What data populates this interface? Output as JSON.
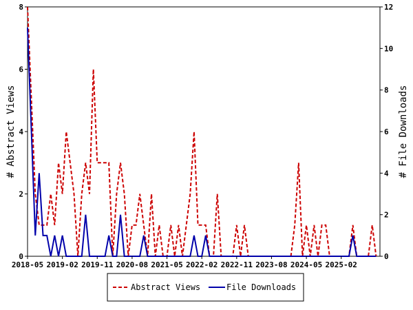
{
  "chart_data": {
    "type": "line",
    "title": "",
    "ylabel_left": "# Abstract Views",
    "ylabel_right": "# File Downloads",
    "ylim_left": [
      0,
      8
    ],
    "ylim_right": [
      0,
      12
    ],
    "yticks_left": [
      "0",
      "2",
      "4",
      "6",
      "8"
    ],
    "yticks_right": [
      "0",
      "2",
      "4",
      "6",
      "8",
      "10",
      "12"
    ],
    "xlim": [
      "2018-05",
      "2025-12"
    ],
    "xticks": [
      "2018-05",
      "2019-02",
      "2019-11",
      "2020-08",
      "2021-05",
      "2022-02",
      "2022-11",
      "2023-08",
      "2024-05",
      "2025-02"
    ],
    "grid": false,
    "legend_position": "bottom",
    "series": [
      {
        "name": "Abstract Views",
        "axis": "left",
        "color": "#cc0000",
        "style": "dashed",
        "points": [
          [
            "2018-05",
            8
          ],
          [
            "2018-06",
            5
          ],
          [
            "2018-07",
            2
          ],
          [
            "2018-08",
            1
          ],
          [
            "2018-09",
            1
          ],
          [
            "2018-10",
            1
          ],
          [
            "2018-11",
            2
          ],
          [
            "2018-12",
            1
          ],
          [
            "2019-01",
            3
          ],
          [
            "2019-02",
            2
          ],
          [
            "2019-03",
            4
          ],
          [
            "2019-04",
            3
          ],
          [
            "2019-05",
            2
          ],
          [
            "2019-06",
            0
          ],
          [
            "2019-07",
            2
          ],
          [
            "2019-08",
            3
          ],
          [
            "2019-09",
            2
          ],
          [
            "2019-10",
            6
          ],
          [
            "2019-11",
            3
          ],
          [
            "2019-12",
            3
          ],
          [
            "2020-01",
            3
          ],
          [
            "2020-02",
            3
          ],
          [
            "2020-03",
            0
          ],
          [
            "2020-04",
            2
          ],
          [
            "2020-05",
            3
          ],
          [
            "2020-06",
            2
          ],
          [
            "2020-07",
            0
          ],
          [
            "2020-08",
            1
          ],
          [
            "2020-09",
            1
          ],
          [
            "2020-10",
            2
          ],
          [
            "2020-11",
            1
          ],
          [
            "2020-12",
            0
          ],
          [
            "2021-01",
            2
          ],
          [
            "2021-02",
            0
          ],
          [
            "2021-03",
            1
          ],
          [
            "2021-04",
            0
          ],
          [
            "2021-05",
            0
          ],
          [
            "2021-06",
            1
          ],
          [
            "2021-07",
            0
          ],
          [
            "2021-08",
            1
          ],
          [
            "2021-09",
            0
          ],
          [
            "2021-10",
            1
          ],
          [
            "2021-11",
            2
          ],
          [
            "2021-12",
            4
          ],
          [
            "2022-01",
            1
          ],
          [
            "2022-02",
            1
          ],
          [
            "2022-03",
            1
          ],
          [
            "2022-04",
            0
          ],
          [
            "2022-05",
            0
          ],
          [
            "2022-06",
            2
          ],
          [
            "2022-07",
            0
          ],
          [
            "2022-08",
            0
          ],
          [
            "2022-09",
            0
          ],
          [
            "2022-10",
            0
          ],
          [
            "2022-11",
            1
          ],
          [
            "2022-12",
            0
          ],
          [
            "2023-01",
            1
          ],
          [
            "2023-02",
            0
          ],
          [
            "2023-03",
            0
          ],
          [
            "2023-04",
            0
          ],
          [
            "2023-05",
            0
          ],
          [
            "2023-06",
            0
          ],
          [
            "2023-07",
            0
          ],
          [
            "2023-08",
            0
          ],
          [
            "2023-09",
            0
          ],
          [
            "2023-10",
            0
          ],
          [
            "2023-11",
            0
          ],
          [
            "2023-12",
            0
          ],
          [
            "2024-01",
            0
          ],
          [
            "2024-02",
            1
          ],
          [
            "2024-03",
            3
          ],
          [
            "2024-04",
            0
          ],
          [
            "2024-05",
            1
          ],
          [
            "2024-06",
            0
          ],
          [
            "2024-07",
            1
          ],
          [
            "2024-08",
            0
          ],
          [
            "2024-09",
            1
          ],
          [
            "2024-10",
            1
          ],
          [
            "2024-11",
            0
          ],
          [
            "2024-12",
            0
          ],
          [
            "2025-01",
            0
          ],
          [
            "2025-02",
            0
          ],
          [
            "2025-03",
            0
          ],
          [
            "2025-04",
            0
          ],
          [
            "2025-05",
            1
          ],
          [
            "2025-06",
            0
          ],
          [
            "2025-07",
            0
          ],
          [
            "2025-08",
            0
          ],
          [
            "2025-09",
            0
          ],
          [
            "2025-10",
            1
          ],
          [
            "2025-11",
            0
          ]
        ]
      },
      {
        "name": "File Downloads",
        "axis": "right",
        "color": "#0000aa",
        "style": "solid",
        "points": [
          [
            "2018-05",
            11
          ],
          [
            "2018-06",
            6
          ],
          [
            "2018-07",
            1
          ],
          [
            "2018-08",
            4
          ],
          [
            "2018-09",
            1
          ],
          [
            "2018-10",
            1
          ],
          [
            "2018-11",
            0
          ],
          [
            "2018-12",
            1
          ],
          [
            "2019-01",
            0
          ],
          [
            "2019-02",
            1
          ],
          [
            "2019-03",
            0
          ],
          [
            "2019-04",
            0
          ],
          [
            "2019-05",
            0
          ],
          [
            "2019-06",
            0
          ],
          [
            "2019-07",
            0
          ],
          [
            "2019-08",
            2
          ],
          [
            "2019-09",
            0
          ],
          [
            "2019-10",
            0
          ],
          [
            "2019-11",
            0
          ],
          [
            "2019-12",
            0
          ],
          [
            "2020-01",
            0
          ],
          [
            "2020-02",
            1
          ],
          [
            "2020-03",
            0
          ],
          [
            "2020-04",
            0
          ],
          [
            "2020-05",
            2
          ],
          [
            "2020-06",
            0
          ],
          [
            "2020-07",
            0
          ],
          [
            "2020-08",
            0
          ],
          [
            "2020-09",
            0
          ],
          [
            "2020-10",
            0
          ],
          [
            "2020-11",
            1
          ],
          [
            "2020-12",
            0
          ],
          [
            "2021-01",
            0
          ],
          [
            "2021-02",
            0
          ],
          [
            "2021-03",
            0
          ],
          [
            "2021-04",
            0
          ],
          [
            "2021-05",
            0
          ],
          [
            "2021-06",
            0
          ],
          [
            "2021-07",
            0
          ],
          [
            "2021-08",
            0
          ],
          [
            "2021-09",
            0
          ],
          [
            "2021-10",
            0
          ],
          [
            "2021-11",
            0
          ],
          [
            "2021-12",
            1
          ],
          [
            "2022-01",
            0
          ],
          [
            "2022-02",
            0
          ],
          [
            "2022-03",
            1
          ],
          [
            "2022-04",
            0
          ],
          [
            "2022-05",
            0
          ],
          [
            "2022-06",
            0
          ],
          [
            "2022-07",
            0
          ],
          [
            "2022-08",
            0
          ],
          [
            "2022-09",
            0
          ],
          [
            "2022-10",
            0
          ],
          [
            "2022-11",
            0
          ],
          [
            "2022-12",
            0
          ],
          [
            "2023-01",
            0
          ],
          [
            "2023-02",
            0
          ],
          [
            "2023-03",
            0
          ],
          [
            "2023-04",
            0
          ],
          [
            "2023-05",
            0
          ],
          [
            "2023-06",
            0
          ],
          [
            "2023-07",
            0
          ],
          [
            "2023-08",
            0
          ],
          [
            "2023-09",
            0
          ],
          [
            "2023-10",
            0
          ],
          [
            "2023-11",
            0
          ],
          [
            "2023-12",
            0
          ],
          [
            "2024-01",
            0
          ],
          [
            "2024-02",
            0
          ],
          [
            "2024-03",
            0
          ],
          [
            "2024-04",
            0
          ],
          [
            "2024-05",
            0
          ],
          [
            "2024-06",
            0
          ],
          [
            "2024-07",
            0
          ],
          [
            "2024-08",
            0
          ],
          [
            "2024-09",
            0
          ],
          [
            "2024-10",
            0
          ],
          [
            "2024-11",
            0
          ],
          [
            "2024-12",
            0
          ],
          [
            "2025-01",
            0
          ],
          [
            "2025-02",
            0
          ],
          [
            "2025-03",
            0
          ],
          [
            "2025-04",
            0
          ],
          [
            "2025-05",
            1
          ],
          [
            "2025-06",
            0
          ],
          [
            "2025-07",
            0
          ],
          [
            "2025-08",
            0
          ],
          [
            "2025-09",
            0
          ],
          [
            "2025-10",
            0
          ],
          [
            "2025-11",
            0
          ]
        ]
      }
    ]
  }
}
